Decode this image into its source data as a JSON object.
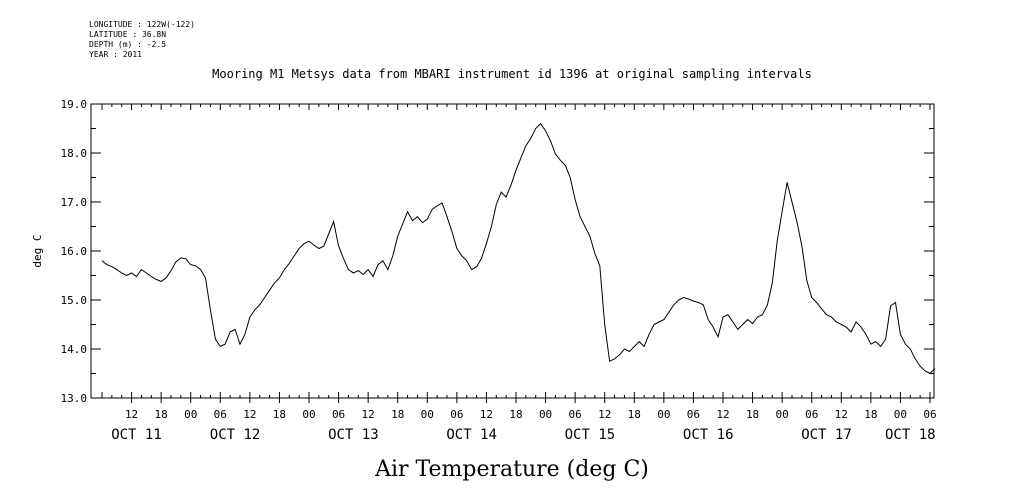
{
  "header": {
    "longitude": "LONGITUDE : 122W(-122)",
    "latitude": "LATITUDE : 36.8N",
    "depth": "DEPTH (m) : -2.5",
    "year": "YEAR : 2011"
  },
  "chart_data": {
    "type": "line",
    "title": "Mooring M1 Metsys data from MBARI instrument id 1396 at original sampling intervals",
    "xlabel": "Air Temperature (deg C)",
    "ylabel": "deg C",
    "ylim": [
      13.0,
      19.0
    ],
    "yticks": [
      "13.0",
      "14.0",
      "15.0",
      "16.0",
      "17.0",
      "18.0",
      "19.0"
    ],
    "xlim_hours": [
      0,
      168
    ],
    "xticks": [
      {
        "h": 6,
        "label": "12"
      },
      {
        "h": 12,
        "label": "18"
      },
      {
        "h": 18,
        "label": "00"
      },
      {
        "h": 24,
        "label": "06"
      },
      {
        "h": 30,
        "label": "12"
      },
      {
        "h": 36,
        "label": "18"
      },
      {
        "h": 42,
        "label": "00"
      },
      {
        "h": 48,
        "label": "06"
      },
      {
        "h": 54,
        "label": "12"
      },
      {
        "h": 60,
        "label": "18"
      },
      {
        "h": 66,
        "label": "00"
      },
      {
        "h": 72,
        "label": "06"
      },
      {
        "h": 78,
        "label": "12"
      },
      {
        "h": 84,
        "label": "18"
      },
      {
        "h": 90,
        "label": "00"
      },
      {
        "h": 96,
        "label": "06"
      },
      {
        "h": 102,
        "label": "12"
      },
      {
        "h": 108,
        "label": "18"
      },
      {
        "h": 114,
        "label": "00"
      },
      {
        "h": 120,
        "label": "06"
      },
      {
        "h": 126,
        "label": "12"
      },
      {
        "h": 132,
        "label": "18"
      },
      {
        "h": 138,
        "label": "00"
      },
      {
        "h": 144,
        "label": "06"
      },
      {
        "h": 150,
        "label": "12"
      },
      {
        "h": 156,
        "label": "18"
      },
      {
        "h": 162,
        "label": "00"
      },
      {
        "h": 168,
        "label": "06"
      }
    ],
    "day_labels": [
      {
        "h": 7,
        "label": "OCT 11"
      },
      {
        "h": 27,
        "label": "OCT 12"
      },
      {
        "h": 51,
        "label": "OCT 13"
      },
      {
        "h": 75,
        "label": "OCT 14"
      },
      {
        "h": 99,
        "label": "OCT 15"
      },
      {
        "h": 123,
        "label": "OCT 16"
      },
      {
        "h": 147,
        "label": "OCT 17"
      },
      {
        "h": 164,
        "label": "OCT 18"
      }
    ],
    "series": [
      {
        "color": "#000000",
        "points": [
          [
            0,
            15.8
          ],
          [
            1,
            15.72
          ],
          [
            2,
            15.68
          ],
          [
            3,
            15.62
          ],
          [
            4,
            15.55
          ],
          [
            5,
            15.5
          ],
          [
            6,
            15.55
          ],
          [
            7,
            15.48
          ],
          [
            8,
            15.62
          ],
          [
            9,
            15.55
          ],
          [
            10,
            15.48
          ],
          [
            11,
            15.42
          ],
          [
            12,
            15.38
          ],
          [
            13,
            15.45
          ],
          [
            14,
            15.6
          ],
          [
            15,
            15.78
          ],
          [
            16,
            15.86
          ],
          [
            17,
            15.84
          ],
          [
            18,
            15.72
          ],
          [
            19,
            15.7
          ],
          [
            20,
            15.62
          ],
          [
            21,
            15.45
          ],
          [
            22,
            14.8
          ],
          [
            23,
            14.2
          ],
          [
            24,
            14.05
          ],
          [
            25,
            14.1
          ],
          [
            26,
            14.35
          ],
          [
            27,
            14.4
          ],
          [
            28,
            14.1
          ],
          [
            29,
            14.3
          ],
          [
            30,
            14.65
          ],
          [
            31,
            14.8
          ],
          [
            32,
            14.9
          ],
          [
            33,
            15.05
          ],
          [
            34,
            15.2
          ],
          [
            35,
            15.35
          ],
          [
            36,
            15.45
          ],
          [
            37,
            15.62
          ],
          [
            38,
            15.75
          ],
          [
            39,
            15.9
          ],
          [
            40,
            16.05
          ],
          [
            41,
            16.15
          ],
          [
            42,
            16.2
          ],
          [
            43,
            16.12
          ],
          [
            44,
            16.05
          ],
          [
            45,
            16.1
          ],
          [
            46,
            16.35
          ],
          [
            47,
            16.6
          ],
          [
            48,
            16.1
          ],
          [
            49,
            15.85
          ],
          [
            50,
            15.62
          ],
          [
            51,
            15.55
          ],
          [
            52,
            15.6
          ],
          [
            53,
            15.52
          ],
          [
            54,
            15.62
          ],
          [
            55,
            15.48
          ],
          [
            56,
            15.72
          ],
          [
            57,
            15.8
          ],
          [
            58,
            15.62
          ],
          [
            59,
            15.9
          ],
          [
            60,
            16.3
          ],
          [
            61,
            16.55
          ],
          [
            62,
            16.8
          ],
          [
            63,
            16.62
          ],
          [
            64,
            16.7
          ],
          [
            65,
            16.58
          ],
          [
            66,
            16.65
          ],
          [
            67,
            16.85
          ],
          [
            68,
            16.92
          ],
          [
            69,
            16.98
          ],
          [
            70,
            16.7
          ],
          [
            71,
            16.4
          ],
          [
            72,
            16.05
          ],
          [
            73,
            15.9
          ],
          [
            74,
            15.8
          ],
          [
            75,
            15.62
          ],
          [
            76,
            15.68
          ],
          [
            77,
            15.85
          ],
          [
            78,
            16.15
          ],
          [
            79,
            16.5
          ],
          [
            80,
            16.95
          ],
          [
            81,
            17.2
          ],
          [
            82,
            17.1
          ],
          [
            83,
            17.35
          ],
          [
            84,
            17.65
          ],
          [
            85,
            17.9
          ],
          [
            86,
            18.15
          ],
          [
            87,
            18.3
          ],
          [
            88,
            18.5
          ],
          [
            89,
            18.6
          ],
          [
            90,
            18.45
          ],
          [
            91,
            18.25
          ],
          [
            92,
            17.98
          ],
          [
            93,
            17.85
          ],
          [
            94,
            17.75
          ],
          [
            95,
            17.5
          ],
          [
            96,
            17.05
          ],
          [
            97,
            16.7
          ],
          [
            98,
            16.5
          ],
          [
            99,
            16.3
          ],
          [
            100,
            15.95
          ],
          [
            101,
            15.7
          ],
          [
            102,
            14.5
          ],
          [
            103,
            13.75
          ],
          [
            104,
            13.8
          ],
          [
            105,
            13.88
          ],
          [
            106,
            14.0
          ],
          [
            107,
            13.95
          ],
          [
            108,
            14.05
          ],
          [
            109,
            14.15
          ],
          [
            110,
            14.05
          ],
          [
            111,
            14.3
          ],
          [
            112,
            14.5
          ],
          [
            113,
            14.55
          ],
          [
            114,
            14.6
          ],
          [
            115,
            14.75
          ],
          [
            116,
            14.9
          ],
          [
            117,
            15.0
          ],
          [
            118,
            15.05
          ],
          [
            119,
            15.02
          ],
          [
            120,
            14.98
          ],
          [
            121,
            14.95
          ],
          [
            122,
            14.9
          ],
          [
            123,
            14.6
          ],
          [
            124,
            14.45
          ],
          [
            125,
            14.25
          ],
          [
            126,
            14.65
          ],
          [
            127,
            14.7
          ],
          [
            128,
            14.55
          ],
          [
            129,
            14.4
          ],
          [
            130,
            14.5
          ],
          [
            131,
            14.6
          ],
          [
            132,
            14.52
          ],
          [
            133,
            14.65
          ],
          [
            134,
            14.7
          ],
          [
            135,
            14.9
          ],
          [
            136,
            15.35
          ],
          [
            137,
            16.2
          ],
          [
            138,
            16.8
          ],
          [
            139,
            17.4
          ],
          [
            140,
            17.0
          ],
          [
            141,
            16.6
          ],
          [
            142,
            16.1
          ],
          [
            143,
            15.4
          ],
          [
            144,
            15.05
          ],
          [
            145,
            14.95
          ],
          [
            146,
            14.82
          ],
          [
            147,
            14.7
          ],
          [
            148,
            14.65
          ],
          [
            149,
            14.55
          ],
          [
            150,
            14.5
          ],
          [
            151,
            14.45
          ],
          [
            152,
            14.35
          ],
          [
            153,
            14.55
          ],
          [
            154,
            14.45
          ],
          [
            155,
            14.3
          ],
          [
            156,
            14.1
          ],
          [
            157,
            14.15
          ],
          [
            158,
            14.05
          ],
          [
            159,
            14.2
          ],
          [
            160,
            14.88
          ],
          [
            161,
            14.95
          ],
          [
            162,
            14.3
          ],
          [
            163,
            14.1
          ],
          [
            164,
            14.0
          ],
          [
            165,
            13.8
          ],
          [
            166,
            13.65
          ],
          [
            167,
            13.55
          ],
          [
            168,
            13.5
          ],
          [
            169,
            13.6
          ]
        ]
      }
    ]
  }
}
